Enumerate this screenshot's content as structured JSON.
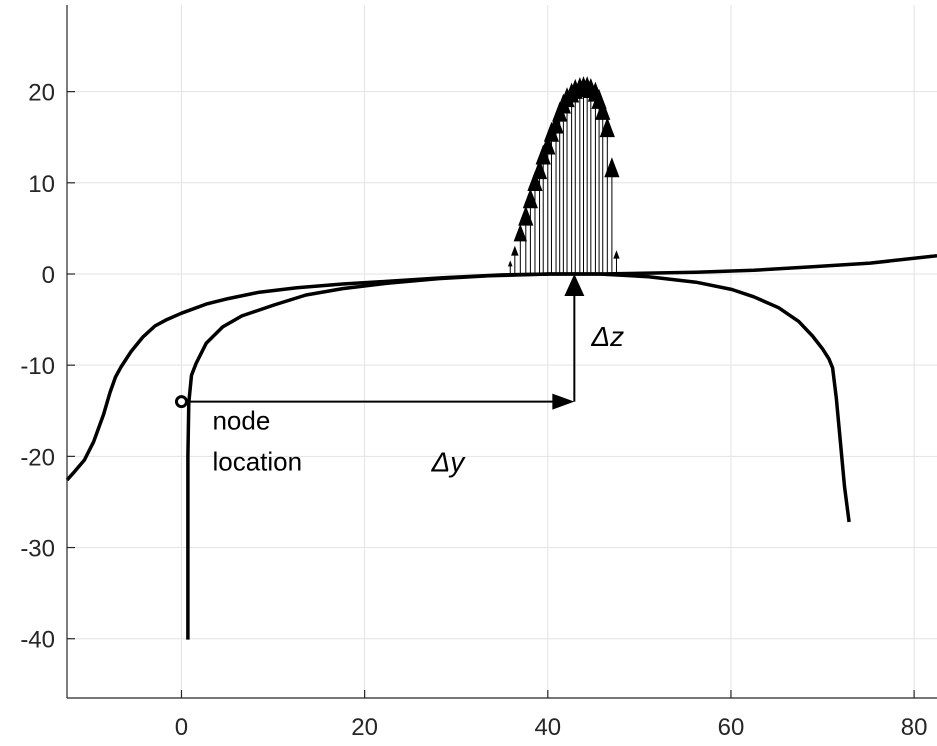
{
  "chart_data": {
    "type": "line",
    "title": "",
    "xlabel": "",
    "ylabel": "",
    "xlim": [
      -12.5,
      82.5
    ],
    "ylim": [
      -46.5,
      29.5
    ],
    "xticks": [
      0,
      20,
      40,
      60,
      80
    ],
    "yticks": [
      20,
      10,
      0,
      -10,
      -20,
      -30,
      -40
    ],
    "x_tick_labels": [
      "0",
      "20",
      "40",
      "60",
      "80"
    ],
    "y_tick_labels": [
      "20",
      "10",
      "0",
      "-10",
      "-20",
      "-30",
      "-40"
    ],
    "grid": true,
    "colors": {
      "line": "#000000",
      "grid": "#e3e3e3",
      "axis": "#262626",
      "node_fill": "#ffffff"
    },
    "series": [
      {
        "x": [
          -12.5,
          -11.7,
          -10.6,
          -9.6,
          -8.5,
          -7.8,
          -7.2,
          -6.6,
          -5.5,
          -4.2,
          -2.9,
          -1.6,
          0,
          2.7,
          5.1,
          8.5,
          12.6,
          17.6,
          22.6,
          28.8,
          35,
          40.2,
          45.6,
          51,
          56.2,
          62.5,
          68.9,
          75.2,
          82.5
        ],
        "y": [
          -22.6,
          -21.7,
          -20.4,
          -18.4,
          -15.4,
          -13,
          -11.3,
          -10.2,
          -8.5,
          -6.9,
          -5.7,
          -5,
          -4.3,
          -3.3,
          -2.7,
          -2,
          -1.5,
          -1.1,
          -0.8,
          -0.4,
          -0.1,
          0,
          0,
          0.1,
          0.2,
          0.4,
          0.8,
          1.2,
          2
        ]
      },
      {
        "x": [
          0.7,
          0.7,
          0.7,
          0.8,
          1.1,
          1.6,
          2.7,
          4.5,
          6.6,
          10.1,
          13.6,
          17.6,
          22.6,
          28.1,
          33.6,
          40.2,
          45.6,
          51,
          56.2,
          60.1,
          62.5,
          65.2,
          67.4,
          68.9,
          70,
          70.7,
          71.1,
          71.5,
          72,
          72.4,
          72.9
        ],
        "y": [
          -40.1,
          -30,
          -20,
          -14.1,
          -11.1,
          -9.8,
          -7.6,
          -5.8,
          -4.6,
          -3.4,
          -2.3,
          -1.6,
          -1,
          -0.5,
          -0.2,
          0,
          0,
          -0.3,
          -0.9,
          -1.7,
          -2.5,
          -3.7,
          -5.2,
          -6.8,
          -8.2,
          -9.3,
          -10.3,
          -13.6,
          -18.9,
          -23.3,
          -27.2
        ]
      }
    ],
    "distributed_load": {
      "x": [
        35.9,
        36.4,
        37,
        37.6,
        38.1,
        38.6,
        39.1,
        39.5,
        40,
        40.4,
        40.9,
        41.3,
        41.7,
        42.1,
        42.6,
        43,
        43.5,
        43.9,
        44.3,
        44.7,
        45.2,
        45.6,
        46,
        46.5,
        47,
        47.5
      ],
      "height": [
        1.5,
        3.1,
        5.5,
        7.5,
        9.4,
        11.3,
        12.6,
        14.2,
        15.3,
        16.7,
        17.6,
        18.9,
        19.8,
        20.5,
        21,
        21.4,
        21.6,
        21.7,
        21.7,
        21.5,
        21.1,
        20.3,
        19.1,
        17.2,
        12.8,
        2.6
      ]
    },
    "node": {
      "x": 0,
      "y": -14
    },
    "load_point": {
      "x": 42.9,
      "y": 0
    },
    "annotations": {
      "node_label_line1": "node",
      "node_label_line2": "location",
      "dz_label": "Δz",
      "dy_label": "Δy"
    }
  }
}
